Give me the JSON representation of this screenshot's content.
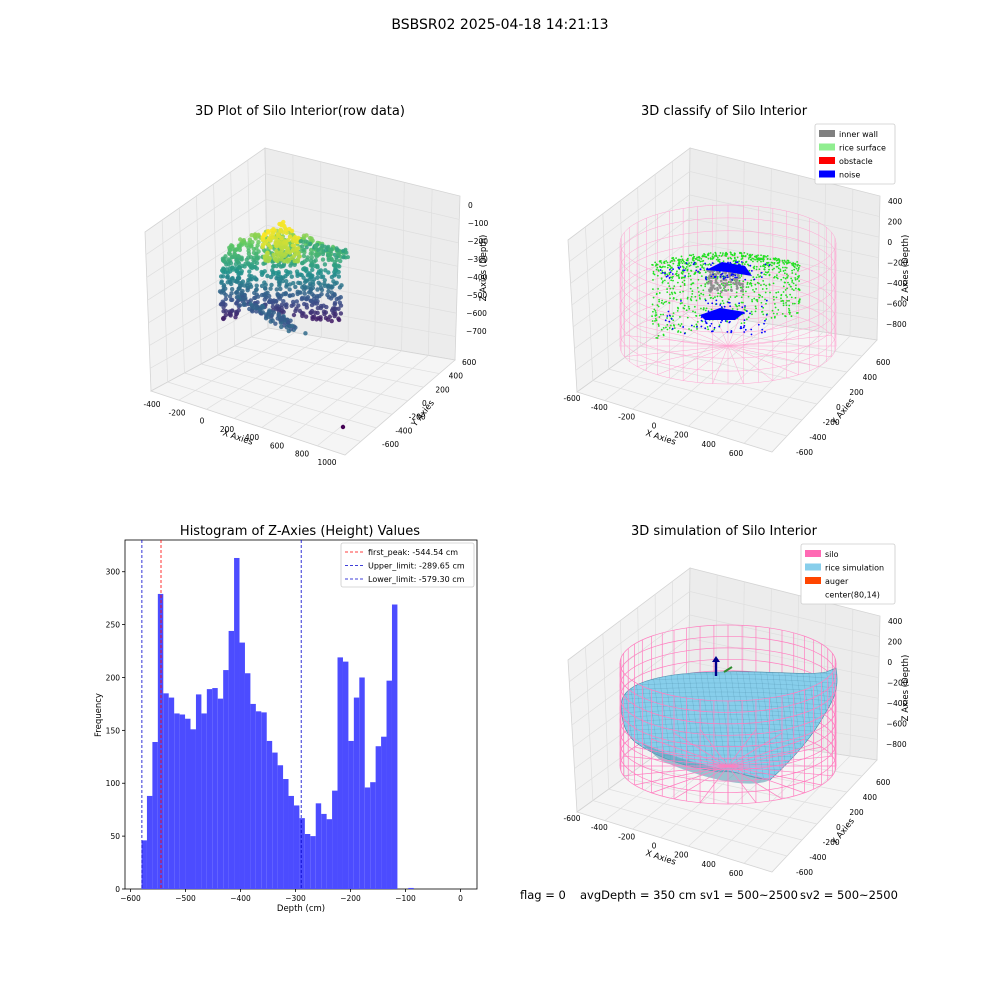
{
  "suptitle": "BSBSR02 2025-04-18 14:21:13",
  "colors": {
    "hist_bar": "#4c4cff",
    "first_peak_line": "#ff0000",
    "limit_line": "#0000cc",
    "inner_wall": "#808080",
    "rice_surface": "#90ee90",
    "obstacle": "#ff0000",
    "noise": "#0000ff",
    "silo": "#ff69b4",
    "rice_simulation": "#87ceeb",
    "auger": "#ff4500"
  },
  "status": {
    "flag": "flag = 0",
    "avg_depth": "avgDepth = 350 cm",
    "sv1": "sv1 = 500~2500",
    "sv2": "sv2 = 500~2500"
  },
  "chart_data": [
    {
      "type": "scatter",
      "title": "3D Plot of Silo Interior(row data)",
      "xlabel": "X Axies",
      "ylabel": "Y Axies",
      "zlabel": "Z Axies (Depth)",
      "x_ticks": [
        "-400",
        "-200",
        "0",
        "200",
        "400",
        "600",
        "800",
        "1000"
      ],
      "y_ticks": [
        "-600",
        "-400",
        "-200",
        "0",
        "200",
        "400",
        "600"
      ],
      "z_ticks": [
        "0",
        "−100",
        "−200",
        "−300",
        "−400",
        "−500",
        "−600",
        "−700"
      ],
      "xlim": [
        -450,
        1050
      ],
      "ylim": [
        -650,
        650
      ],
      "zlim": [
        -750,
        30
      ]
    },
    {
      "type": "scatter",
      "title": "3D classify of Silo Interior",
      "xlabel": "X Axies",
      "ylabel": "Y Axies",
      "zlabel": "Z Axies (Depth)",
      "x_ticks": [
        "-600",
        "-400",
        "-200",
        "0",
        "200",
        "400",
        "600"
      ],
      "y_ticks": [
        "-600",
        "-400",
        "-200",
        "0",
        "200",
        "400",
        "600"
      ],
      "z_ticks": [
        "400",
        "200",
        "0",
        "−200",
        "−400",
        "−600",
        "−800"
      ],
      "legend": [
        "inner wall",
        "rice surface",
        "obstacle",
        "noise"
      ],
      "legend_position": "top-right"
    },
    {
      "type": "bar",
      "title": "Histogram of Z-Axies (Height) Values",
      "xlabel": "Depth (cm)",
      "ylabel": "Frequency",
      "xlim": [
        -610,
        30
      ],
      "ylim": [
        0,
        330
      ],
      "x_ticks": [
        -600,
        -500,
        -400,
        -300,
        -200,
        -100,
        0
      ],
      "y_ticks": [
        0,
        50,
        100,
        150,
        200,
        250,
        300
      ],
      "bin_start": -580,
      "bin_width": 9.9,
      "values": [
        46,
        88,
        139,
        279,
        185,
        181,
        166,
        165,
        161,
        151,
        184,
        166,
        189,
        190,
        180,
        207,
        244,
        313,
        233,
        204,
        175,
        168,
        167,
        140,
        129,
        117,
        104,
        88,
        79,
        67,
        52,
        50,
        81,
        71,
        66,
        93,
        219,
        215,
        140,
        181,
        200,
        96,
        101,
        135,
        144,
        197,
        269,
        0,
        0,
        1
      ],
      "lines": [
        {
          "label": "first_peak: -544.54 cm",
          "x": -544.54,
          "style": "first_peak"
        },
        {
          "label": "Upper_limit: -289.65 cm",
          "x": -289.65,
          "style": "limit"
        },
        {
          "label": "Lower_limit: -579.30 cm",
          "x": -579.3,
          "style": "limit"
        }
      ],
      "legend_position": "top-right"
    },
    {
      "type": "surface",
      "title": "3D simulation of Silo Interior",
      "xlabel": "X Axies",
      "ylabel": "Y Axies",
      "zlabel": "Z Axies (Depth)",
      "x_ticks": [
        "-600",
        "-400",
        "-200",
        "0",
        "200",
        "400",
        "600"
      ],
      "y_ticks": [
        "-600",
        "-400",
        "-200",
        "0",
        "200",
        "400",
        "600"
      ],
      "z_ticks": [
        "400",
        "200",
        "0",
        "−200",
        "−400",
        "−600",
        "−800"
      ],
      "legend": [
        "silo",
        "rice simulation",
        "auger",
        "center(80,14)"
      ],
      "legend_position": "top-right"
    }
  ]
}
